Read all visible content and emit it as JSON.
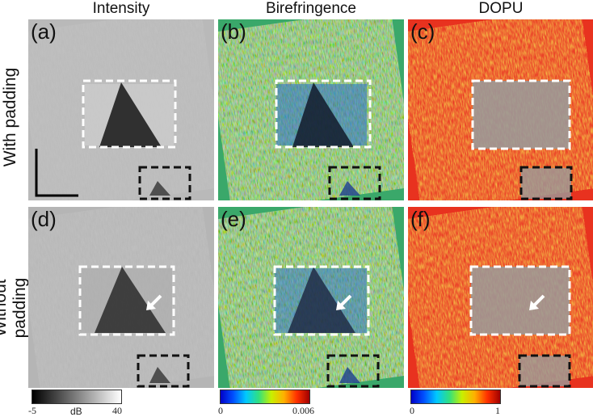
{
  "columns": [
    "Intensity",
    "Birefringence",
    "DOPU"
  ],
  "rows": [
    "With padding",
    "Without padding"
  ],
  "panels": [
    {
      "label": "(a)",
      "type": "intensity"
    },
    {
      "label": "(b)",
      "type": "birefringence"
    },
    {
      "label": "(c)",
      "type": "dopu"
    },
    {
      "label": "(d)",
      "type": "intensity"
    },
    {
      "label": "(e)",
      "type": "birefringence"
    },
    {
      "label": "(f)",
      "type": "dopu"
    }
  ],
  "colorbars": [
    {
      "min": "-5",
      "max": "40",
      "unit": "dB",
      "scale": "gray"
    },
    {
      "min": "0",
      "max": "0.006",
      "unit": "",
      "scale": "jet"
    },
    {
      "min": "0",
      "max": "1",
      "unit": "",
      "scale": "jet"
    }
  ],
  "colors": {
    "roi_box": "#ffffff",
    "zoom_box": "#111111",
    "arrow": "#ffffff",
    "scale_bar": "#000000"
  },
  "annotations": {
    "arrow_panels": [
      "(d)",
      "(e)",
      "(f)"
    ],
    "scale_bar_panel": "(a)"
  }
}
